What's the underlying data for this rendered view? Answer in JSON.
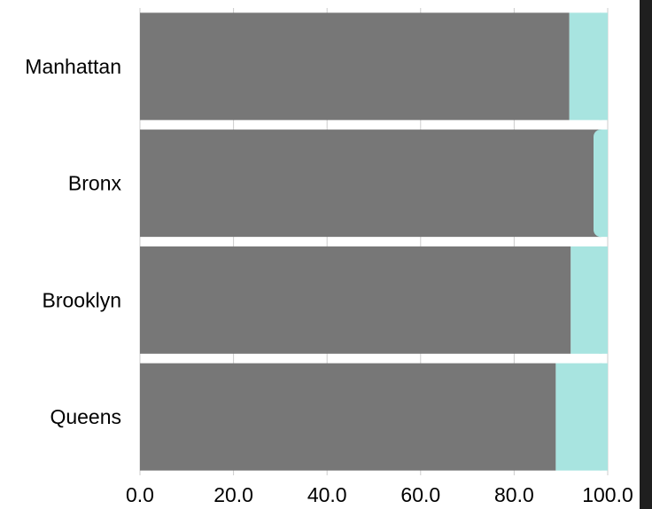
{
  "chart_data": {
    "type": "bar",
    "orientation": "horizontal",
    "stacked": true,
    "normalized": true,
    "categories": [
      "Manhattan",
      "Bronx",
      "Brooklyn",
      "Queens"
    ],
    "series": [
      {
        "values": [
          91.8,
          98.6,
          92.1,
          88.9
        ],
        "color": "#777777"
      },
      {
        "values": [
          8.2,
          1.4,
          7.9,
          11.1
        ],
        "color": "#a8e4e0"
      }
    ],
    "xlim": [
      0,
      100
    ],
    "xticks": [
      "0.0",
      "20.0",
      "40.0",
      "60.0",
      "80.0",
      "100.0"
    ],
    "grid": "vertical",
    "title": "",
    "xlabel": "",
    "ylabel": "",
    "legend": "none"
  }
}
